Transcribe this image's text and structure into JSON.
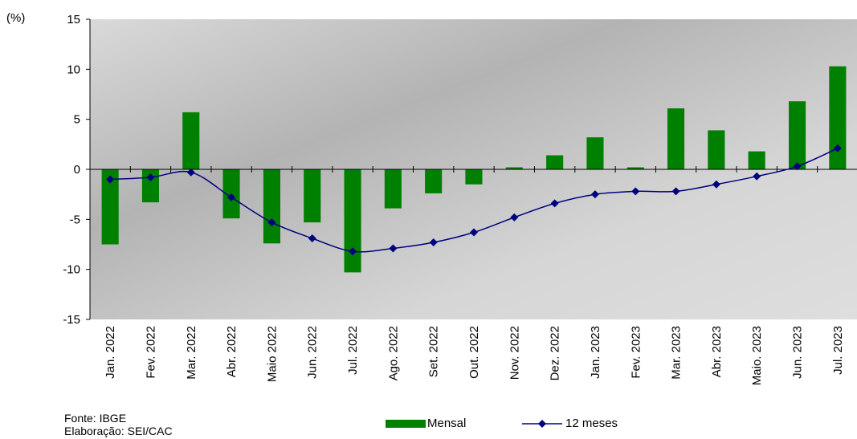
{
  "chart_data": {
    "type": "bar",
    "ylabel": "(%)",
    "ylim": [
      -15,
      15
    ],
    "yticks": [
      "15",
      "10",
      "5",
      "0",
      "-5",
      "-10",
      "-15"
    ],
    "categories": [
      "Jan. 2022",
      "Fev. 2022",
      "Mar. 2022",
      "Abr. 2022",
      "Maio 2022",
      "Jun. 2022",
      "Jul. 2022",
      "Ago. 2022",
      "Set. 2022",
      "Out. 2022",
      "Nov. 2022",
      "Dez. 2022",
      "Jan. 2023",
      "Fev. 2023",
      "Mar. 2023",
      "Abr. 2023",
      "Maio. 2023",
      "Jun. 2023",
      "Jul. 2023"
    ],
    "series": [
      {
        "name": "Mensal",
        "type": "bar",
        "color": "#008000",
        "values": [
          -7.5,
          -3.3,
          5.7,
          -4.9,
          -7.4,
          -5.3,
          -10.3,
          -3.9,
          -2.4,
          -1.5,
          0.2,
          1.4,
          3.2,
          0.2,
          6.1,
          3.9,
          1.8,
          6.8,
          10.3
        ]
      },
      {
        "name": "12 meses",
        "type": "line",
        "color": "#000080",
        "values": [
          -1.0,
          -0.8,
          -0.3,
          -2.8,
          -5.3,
          -6.9,
          -8.2,
          -7.9,
          -7.3,
          -6.3,
          -4.8,
          -3.4,
          -2.5,
          -2.2,
          -2.2,
          -1.5,
          -0.7,
          0.3,
          2.1
        ]
      }
    ],
    "grid": false
  },
  "source_lines": [
    "Fonte: IBGE",
    "Elaboração: SEI/CAC"
  ]
}
